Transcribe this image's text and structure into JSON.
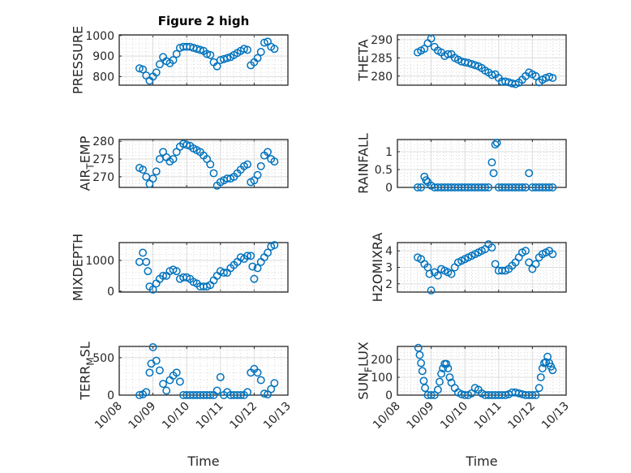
{
  "figure": {
    "title": "Figure 2 high",
    "marker_color": "#0072BD"
  },
  "chart_data": [
    {
      "type": "scatter",
      "name": "pressure",
      "ylabel": "PRESSURE",
      "xlabel": "",
      "ylim": [
        758,
        1003
      ],
      "yticks": [
        800,
        900,
        1000
      ],
      "ytick_labels": [
        "800",
        "900",
        "1000"
      ],
      "xlim": [
        8,
        13
      ],
      "xticks": [
        8,
        9,
        10,
        11,
        12,
        13
      ],
      "xtick_labels": [],
      "grid": true,
      "x": [
        8.6,
        8.7,
        8.8,
        8.9,
        9.0,
        9.1,
        9.2,
        9.3,
        9.4,
        9.5,
        9.6,
        9.7,
        9.8,
        9.9,
        10.0,
        10.1,
        10.2,
        10.3,
        10.4,
        10.5,
        10.6,
        10.7,
        10.8,
        10.9,
        11.0,
        11.1,
        11.2,
        11.3,
        11.4,
        11.5,
        11.6,
        11.7,
        11.8,
        11.9,
        12.0,
        12.1,
        12.2,
        12.3,
        12.4,
        12.5,
        12.6
      ],
      "y": [
        840,
        835,
        805,
        780,
        800,
        820,
        860,
        895,
        875,
        865,
        880,
        910,
        940,
        945,
        945,
        945,
        940,
        935,
        930,
        925,
        910,
        905,
        870,
        850,
        880,
        885,
        890,
        895,
        905,
        915,
        925,
        935,
        930,
        855,
        870,
        890,
        920,
        965,
        970,
        945,
        935
      ]
    },
    {
      "type": "scatter",
      "name": "theta",
      "ylabel": "THETA",
      "xlabel": "",
      "ylim": [
        277.5,
        291.3
      ],
      "yticks": [
        280,
        285,
        290
      ],
      "ytick_labels": [
        "280",
        "285",
        "290"
      ],
      "xlim": [
        8,
        13
      ],
      "xticks": [
        8,
        9,
        10,
        11,
        12,
        13
      ],
      "xtick_labels": [],
      "grid": true,
      "x": [
        8.6,
        8.7,
        8.8,
        8.9,
        9.0,
        9.1,
        9.2,
        9.3,
        9.4,
        9.5,
        9.6,
        9.7,
        9.8,
        9.9,
        10.0,
        10.1,
        10.2,
        10.3,
        10.4,
        10.5,
        10.6,
        10.7,
        10.8,
        10.9,
        11.0,
        11.1,
        11.2,
        11.3,
        11.4,
        11.5,
        11.6,
        11.7,
        11.8,
        11.9,
        12.0,
        12.1,
        12.2,
        12.3,
        12.4,
        12.5,
        12.6
      ],
      "y": [
        286.5,
        287,
        287.5,
        289,
        290.3,
        288,
        287,
        286.5,
        285.5,
        286,
        286,
        285,
        284.5,
        284,
        283.8,
        283.6,
        283.3,
        283,
        282.7,
        282.2,
        281.5,
        281,
        280.3,
        280.5,
        279.5,
        278.5,
        278.5,
        278.3,
        278,
        277.8,
        278.2,
        279,
        280,
        281,
        280.5,
        280,
        278.3,
        279,
        279.5,
        279.8,
        279.5
      ]
    },
    {
      "type": "scatter",
      "name": "air-temp",
      "ylabel": "AIR_TEMP",
      "xlabel": "",
      "ylim": [
        267,
        280.5
      ],
      "yticks": [
        270,
        275,
        280
      ],
      "ytick_labels": [
        "270",
        "275",
        "280"
      ],
      "xlim": [
        8,
        13
      ],
      "xticks": [
        8,
        9,
        10,
        11,
        12,
        13
      ],
      "xtick_labels": [],
      "grid": true,
      "x": [
        8.6,
        8.7,
        8.8,
        8.9,
        9.0,
        9.1,
        9.2,
        9.3,
        9.4,
        9.5,
        9.6,
        9.7,
        9.8,
        9.9,
        10.0,
        10.1,
        10.2,
        10.3,
        10.4,
        10.5,
        10.6,
        10.7,
        10.8,
        10.9,
        11.0,
        11.1,
        11.2,
        11.3,
        11.4,
        11.5,
        11.6,
        11.7,
        11.8,
        11.9,
        12.0,
        12.1,
        12.2,
        12.3,
        12.4,
        12.5,
        12.6
      ],
      "y": [
        272.5,
        272,
        270,
        268,
        269.5,
        271.5,
        275,
        277,
        275.5,
        274.3,
        275,
        277,
        278.5,
        279.3,
        279,
        278.7,
        278,
        277.5,
        277,
        276,
        275,
        273.5,
        271,
        267.5,
        268.5,
        269,
        269.5,
        269.5,
        270,
        271,
        272,
        273,
        273.5,
        268.5,
        269,
        270.5,
        273,
        276,
        277,
        275,
        274.3
      ]
    },
    {
      "type": "scatter",
      "name": "rainfall",
      "ylabel": "RAINFALL",
      "xlabel": "",
      "ylim": [
        0,
        1.34
      ],
      "yticks": [
        0,
        0.5,
        1
      ],
      "ytick_labels": [
        "0",
        "0.5",
        "1"
      ],
      "xlim": [
        8,
        13
      ],
      "xticks": [
        8,
        9,
        10,
        11,
        12,
        13
      ],
      "xtick_labels": [],
      "grid": true,
      "x": [
        8.6,
        8.7,
        8.8,
        8.85,
        8.9,
        9.0,
        9.1,
        9.2,
        9.3,
        9.4,
        9.5,
        9.6,
        9.7,
        9.8,
        9.9,
        10.0,
        10.1,
        10.2,
        10.3,
        10.4,
        10.5,
        10.6,
        10.7,
        10.8,
        10.85,
        10.9,
        10.95,
        11.0,
        11.1,
        11.2,
        11.3,
        11.4,
        11.5,
        11.6,
        11.7,
        11.8,
        11.9,
        12.0,
        12.1,
        12.2,
        12.3,
        12.4,
        12.5,
        12.6
      ],
      "y": [
        0,
        0,
        0.3,
        0.2,
        0.15,
        0.05,
        0,
        0,
        0,
        0,
        0,
        0,
        0,
        0,
        0,
        0,
        0,
        0,
        0,
        0,
        0,
        0,
        0,
        0.7,
        0.4,
        1.2,
        1.25,
        0,
        0,
        0,
        0,
        0,
        0,
        0,
        0,
        0,
        0.4,
        0,
        0,
        0,
        0,
        0,
        0,
        0
      ]
    },
    {
      "type": "scatter",
      "name": "mixdepth",
      "ylabel": "MIXDEPTH",
      "xlabel": "",
      "ylim": [
        -30,
        1580
      ],
      "yticks": [
        0,
        1000
      ],
      "ytick_labels": [
        "0",
        "1000"
      ],
      "xlim": [
        8,
        13
      ],
      "xticks": [
        8,
        9,
        10,
        11,
        12,
        13
      ],
      "xtick_labels": [],
      "grid": true,
      "x": [
        8.6,
        8.7,
        8.8,
        8.85,
        8.9,
        9.0,
        9.1,
        9.2,
        9.3,
        9.4,
        9.5,
        9.6,
        9.7,
        9.8,
        9.9,
        10.0,
        10.1,
        10.2,
        10.3,
        10.4,
        10.5,
        10.6,
        10.7,
        10.8,
        10.9,
        11.0,
        11.1,
        11.2,
        11.3,
        11.4,
        11.5,
        11.6,
        11.7,
        11.8,
        11.9,
        11.95,
        12.0,
        12.1,
        12.2,
        12.3,
        12.4,
        12.5,
        12.6
      ],
      "y": [
        950,
        1250,
        950,
        650,
        150,
        50,
        250,
        400,
        500,
        500,
        650,
        700,
        650,
        400,
        450,
        450,
        400,
        300,
        250,
        150,
        150,
        150,
        200,
        350,
        500,
        650,
        600,
        600,
        750,
        850,
        950,
        1100,
        1050,
        1150,
        1150,
        800,
        400,
        750,
        950,
        1100,
        1250,
        1450,
        1500
      ]
    },
    {
      "type": "scatter",
      "name": "h2omixra",
      "ylabel": "H2OMIXRA",
      "xlabel": "",
      "ylim": [
        1.5,
        4.5
      ],
      "yticks": [
        2,
        3,
        4
      ],
      "ytick_labels": [
        "2",
        "3",
        "4"
      ],
      "xlim": [
        8,
        13
      ],
      "xticks": [
        8,
        9,
        10,
        11,
        12,
        13
      ],
      "xtick_labels": [],
      "grid": true,
      "x": [
        8.6,
        8.7,
        8.8,
        8.9,
        8.95,
        9.0,
        9.1,
        9.2,
        9.3,
        9.4,
        9.5,
        9.6,
        9.7,
        9.8,
        9.9,
        10.0,
        10.1,
        10.2,
        10.3,
        10.4,
        10.5,
        10.6,
        10.7,
        10.8,
        10.9,
        11.0,
        11.1,
        11.2,
        11.3,
        11.4,
        11.5,
        11.6,
        11.7,
        11.8,
        11.9,
        12.0,
        12.1,
        12.2,
        12.3,
        12.4,
        12.5,
        12.6
      ],
      "y": [
        3.6,
        3.5,
        3.2,
        3.0,
        2.6,
        1.6,
        2.7,
        2.5,
        2.9,
        2.8,
        2.7,
        2.6,
        3.0,
        3.3,
        3.4,
        3.5,
        3.6,
        3.7,
        3.8,
        3.9,
        4.0,
        4.1,
        4.4,
        4.2,
        3.2,
        2.8,
        2.8,
        2.8,
        2.9,
        3.1,
        3.3,
        3.6,
        3.9,
        4.0,
        3.3,
        2.9,
        3.2,
        3.6,
        3.8,
        3.9,
        4.0,
        3.8
      ]
    },
    {
      "type": "scatter",
      "name": "terr-msl",
      "ylabel": "TERR_MSL",
      "xlabel": "Time",
      "ylim": [
        0,
        650
      ],
      "yticks": [
        0,
        500
      ],
      "ytick_labels": [
        "0",
        "500"
      ],
      "xlim": [
        8,
        13
      ],
      "xticks": [
        8,
        9,
        10,
        11,
        12,
        13
      ],
      "xtick_labels": [
        "10/08",
        "10/09",
        "10/10",
        "10/11",
        "10/12",
        "10/13"
      ],
      "grid": true,
      "x": [
        8.6,
        8.7,
        8.8,
        8.9,
        8.95,
        9.0,
        9.1,
        9.2,
        9.3,
        9.4,
        9.5,
        9.6,
        9.7,
        9.8,
        9.9,
        10.0,
        10.1,
        10.2,
        10.3,
        10.4,
        10.5,
        10.6,
        10.7,
        10.8,
        10.9,
        11.0,
        11.1,
        11.2,
        11.3,
        11.4,
        11.5,
        11.6,
        11.7,
        11.8,
        11.9,
        12.0,
        12.1,
        12.2,
        12.3,
        12.4,
        12.5,
        12.6
      ],
      "y": [
        0,
        10,
        40,
        300,
        420,
        640,
        460,
        330,
        150,
        60,
        200,
        260,
        300,
        180,
        0,
        0,
        0,
        0,
        0,
        0,
        0,
        0,
        0,
        0,
        60,
        240,
        0,
        40,
        0,
        0,
        0,
        0,
        0,
        40,
        300,
        350,
        300,
        200,
        20,
        10,
        80,
        160
      ]
    },
    {
      "type": "scatter",
      "name": "sun-flux",
      "ylabel": "SUN_FLUX",
      "xlabel": "Time",
      "ylim": [
        0,
        273
      ],
      "yticks": [
        0,
        100,
        200
      ],
      "ytick_labels": [
        "0",
        "100",
        "200"
      ],
      "xlim": [
        8,
        13
      ],
      "xticks": [
        8,
        9,
        10,
        11,
        12,
        13
      ],
      "xtick_labels": [
        "10/08",
        "10/09",
        "10/10",
        "10/11",
        "10/12",
        "10/13"
      ],
      "grid": true,
      "x": [
        8.62,
        8.66,
        8.7,
        8.74,
        8.78,
        8.82,
        8.9,
        9.0,
        9.1,
        9.2,
        9.25,
        9.3,
        9.35,
        9.4,
        9.45,
        9.5,
        9.55,
        9.6,
        9.7,
        9.8,
        9.9,
        10.0,
        10.1,
        10.2,
        10.3,
        10.4,
        10.5,
        10.6,
        10.7,
        10.8,
        10.9,
        11.0,
        11.1,
        11.2,
        11.3,
        11.4,
        11.5,
        11.6,
        11.7,
        11.8,
        11.9,
        12.0,
        12.1,
        12.2,
        12.25,
        12.3,
        12.35,
        12.4,
        12.45,
        12.5,
        12.55,
        12.6
      ],
      "y": [
        265,
        225,
        180,
        135,
        80,
        40,
        0,
        0,
        0,
        30,
        75,
        120,
        150,
        175,
        175,
        150,
        100,
        70,
        40,
        15,
        5,
        0,
        0,
        10,
        40,
        30,
        10,
        0,
        0,
        0,
        0,
        0,
        0,
        0,
        5,
        15,
        15,
        10,
        5,
        0,
        0,
        0,
        0,
        40,
        100,
        150,
        180,
        185,
        215,
        180,
        160,
        140
      ]
    }
  ]
}
